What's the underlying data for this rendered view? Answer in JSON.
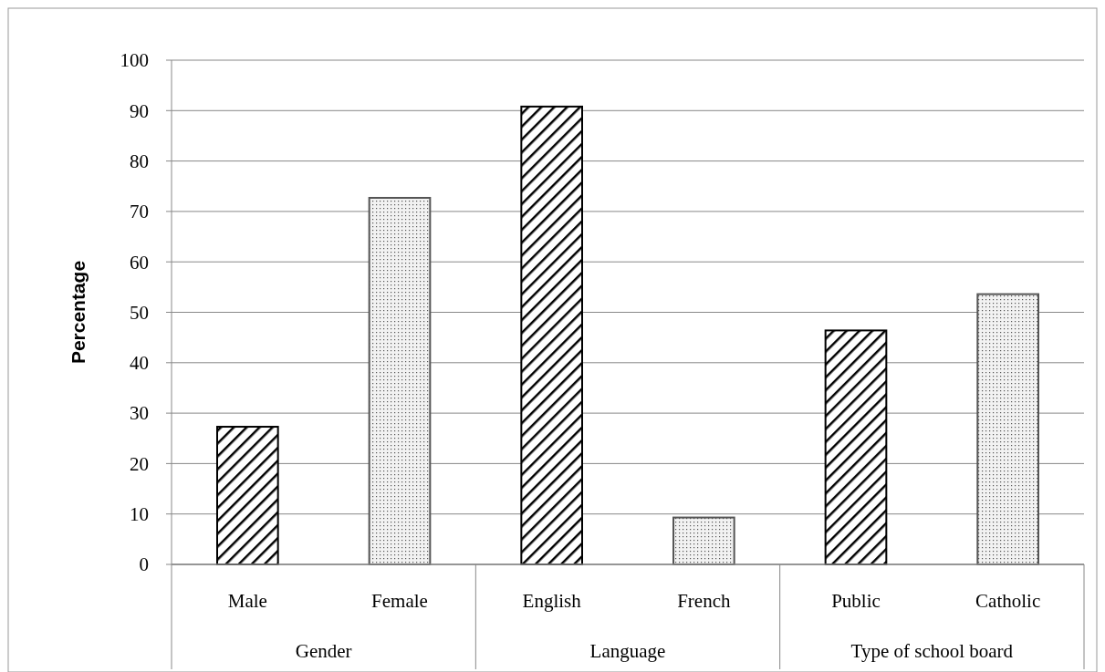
{
  "chart_data": {
    "type": "bar",
    "ylabel": "Percentage",
    "categories": [
      "Male",
      "Female",
      "English",
      "French",
      "Public",
      "Catholic"
    ],
    "values": [
      27.3,
      72.7,
      90.8,
      9.3,
      46.4,
      53.6
    ],
    "colors": [
      "#000000",
      "#555555",
      "#000000",
      "#555555",
      "#000000",
      "#555555"
    ],
    "annotations": [
      "Gender",
      "Language",
      "Type of school board"
    ],
    "ylim": [
      0,
      100
    ],
    "yticks": [
      0,
      10,
      20,
      30,
      40,
      50,
      60,
      70,
      80,
      90,
      100
    ],
    "grid": "y"
  }
}
